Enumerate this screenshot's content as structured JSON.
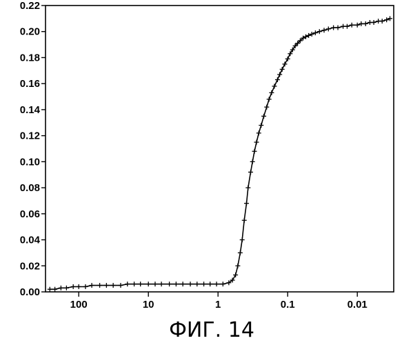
{
  "figure": {
    "caption": "ФИГ. 14"
  },
  "chart_data": {
    "type": "scatter",
    "title": "",
    "xlabel": "",
    "ylabel": "",
    "x_scale": "log",
    "x_reversed": true,
    "xlim": [
      300,
      0.003
    ],
    "ylim": [
      0,
      0.22
    ],
    "x_ticks": [
      {
        "value": 100,
        "label": "100"
      },
      {
        "value": 10,
        "label": "10"
      },
      {
        "value": 1,
        "label": "1"
      },
      {
        "value": 0.1,
        "label": "0.1"
      },
      {
        "value": 0.01,
        "label": "0.01"
      }
    ],
    "y_ticks": [
      {
        "value": 0.0,
        "label": "0.00"
      },
      {
        "value": 0.02,
        "label": "0.02"
      },
      {
        "value": 0.04,
        "label": "0.04"
      },
      {
        "value": 0.06,
        "label": "0.06"
      },
      {
        "value": 0.08,
        "label": "0.08"
      },
      {
        "value": 0.1,
        "label": "0.10"
      },
      {
        "value": 0.12,
        "label": "0.12"
      },
      {
        "value": 0.14,
        "label": "0.14"
      },
      {
        "value": 0.16,
        "label": "0.16"
      },
      {
        "value": 0.18,
        "label": "0.18"
      },
      {
        "value": 0.2,
        "label": "0.20"
      },
      {
        "value": 0.22,
        "label": "0.22"
      }
    ],
    "grid": false,
    "marker": "plus",
    "line": true,
    "series": [
      {
        "points": [
          [
            260,
            0.002
          ],
          [
            220,
            0.002
          ],
          [
            180,
            0.003
          ],
          [
            150,
            0.003
          ],
          [
            120,
            0.004
          ],
          [
            100,
            0.004
          ],
          [
            80,
            0.004
          ],
          [
            65,
            0.005
          ],
          [
            50,
            0.005
          ],
          [
            40,
            0.005
          ],
          [
            32,
            0.005
          ],
          [
            25,
            0.005
          ],
          [
            20,
            0.006
          ],
          [
            16,
            0.006
          ],
          [
            13,
            0.006
          ],
          [
            10,
            0.006
          ],
          [
            8,
            0.006
          ],
          [
            6.5,
            0.006
          ],
          [
            5,
            0.006
          ],
          [
            4,
            0.006
          ],
          [
            3.2,
            0.006
          ],
          [
            2.5,
            0.006
          ],
          [
            2,
            0.006
          ],
          [
            1.6,
            0.006
          ],
          [
            1.3,
            0.006
          ],
          [
            1.05,
            0.006
          ],
          [
            0.85,
            0.006
          ],
          [
            0.7,
            0.007
          ],
          [
            0.62,
            0.009
          ],
          [
            0.56,
            0.013
          ],
          [
            0.52,
            0.02
          ],
          [
            0.48,
            0.03
          ],
          [
            0.45,
            0.04
          ],
          [
            0.42,
            0.055
          ],
          [
            0.39,
            0.068
          ],
          [
            0.37,
            0.08
          ],
          [
            0.34,
            0.092
          ],
          [
            0.32,
            0.1
          ],
          [
            0.3,
            0.108
          ],
          [
            0.28,
            0.115
          ],
          [
            0.26,
            0.122
          ],
          [
            0.24,
            0.128
          ],
          [
            0.22,
            0.135
          ],
          [
            0.2,
            0.142
          ],
          [
            0.185,
            0.148
          ],
          [
            0.17,
            0.153
          ],
          [
            0.155,
            0.158
          ],
          [
            0.14,
            0.163
          ],
          [
            0.13,
            0.167
          ],
          [
            0.12,
            0.171
          ],
          [
            0.11,
            0.175
          ],
          [
            0.1,
            0.179
          ],
          [
            0.092,
            0.183
          ],
          [
            0.085,
            0.186
          ],
          [
            0.078,
            0.189
          ],
          [
            0.072,
            0.191
          ],
          [
            0.066,
            0.193
          ],
          [
            0.06,
            0.195
          ],
          [
            0.055,
            0.196
          ],
          [
            0.05,
            0.197
          ],
          [
            0.045,
            0.198
          ],
          [
            0.04,
            0.199
          ],
          [
            0.035,
            0.2
          ],
          [
            0.03,
            0.201
          ],
          [
            0.026,
            0.202
          ],
          [
            0.022,
            0.203
          ],
          [
            0.019,
            0.203
          ],
          [
            0.016,
            0.204
          ],
          [
            0.014,
            0.204
          ],
          [
            0.012,
            0.205
          ],
          [
            0.01,
            0.205
          ],
          [
            0.0088,
            0.206
          ],
          [
            0.0076,
            0.206
          ],
          [
            0.0066,
            0.207
          ],
          [
            0.0058,
            0.207
          ],
          [
            0.005,
            0.208
          ],
          [
            0.0044,
            0.208
          ],
          [
            0.0038,
            0.209
          ],
          [
            0.0034,
            0.21
          ]
        ]
      }
    ]
  }
}
